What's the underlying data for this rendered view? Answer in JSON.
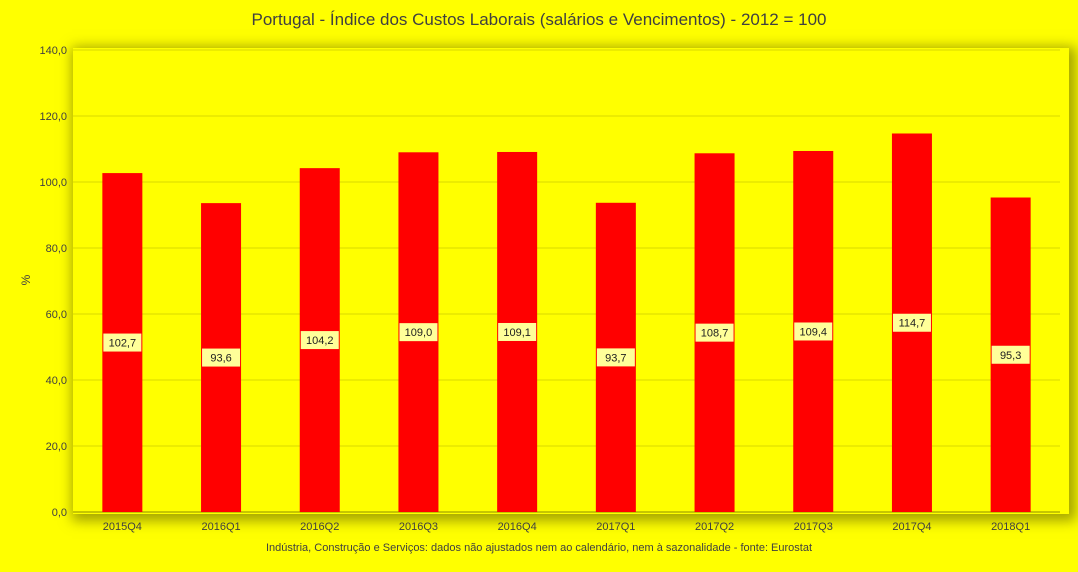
{
  "chart_data": {
    "type": "bar",
    "title": "Portugal - Índice dos Custos Laborais (salários e Vencimentos) -  2012 = 100",
    "ylabel": "%",
    "xlabel": "",
    "footnote": "Indústria, Construção e Serviços: dados não ajustados nem ao calendário, nem à sazonalidade - fonte:  Eurostat",
    "categories": [
      "2015Q4",
      "2016Q1",
      "2016Q2",
      "2016Q3",
      "2016Q4",
      "2017Q1",
      "2017Q2",
      "2017Q3",
      "2017Q4",
      "2018Q1"
    ],
    "values": [
      102.7,
      93.6,
      104.2,
      109.0,
      109.1,
      93.7,
      108.7,
      109.4,
      114.7,
      95.3
    ],
    "data_labels": [
      "102,7",
      "93,6",
      "104,2",
      "109,0",
      "109,1",
      "93,7",
      "108,7",
      "109,4",
      "114,7",
      "95,3"
    ],
    "ylim": [
      0,
      140
    ],
    "yticks": [
      0,
      20,
      40,
      60,
      80,
      100,
      120,
      140
    ],
    "ytick_labels": [
      "0,0",
      "20,0",
      "40,0",
      "60,0",
      "80,0",
      "100,0",
      "120,0",
      "140,0"
    ],
    "grid": true,
    "legend": "none",
    "colors": {
      "background": "#ffff00",
      "bar": "#ff0000",
      "label_box": "#ffff99",
      "grid": "#d9d900",
      "text": "#404040"
    }
  }
}
